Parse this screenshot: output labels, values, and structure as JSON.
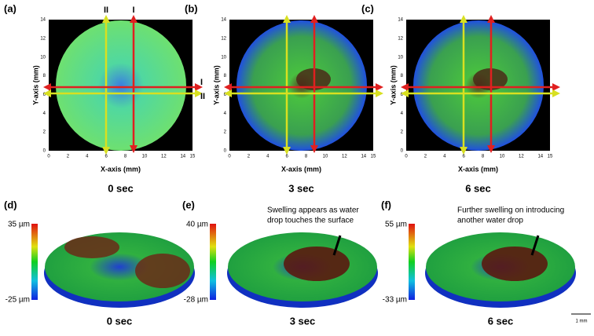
{
  "top_panels": [
    {
      "label": "(a)",
      "y_axis_title": "Y-axis (mm)",
      "x_axis_title": "X-axis (mm)",
      "yticks": [
        "0",
        "2",
        "4",
        "6",
        "8",
        "10",
        "12",
        "14"
      ],
      "xticks": [
        "0",
        "2",
        "4",
        "6",
        "8",
        "10",
        "12",
        "14",
        "15"
      ],
      "line_labels": {
        "yellow_vertical": "II",
        "red_vertical": "I",
        "red_horizontal": "I",
        "yellow_horizontal": "II"
      },
      "caption": "0 sec"
    },
    {
      "label": "(b)",
      "y_axis_title": "Y-axis (mm)",
      "x_axis_title": "X-axis (mm)",
      "yticks": [
        "0",
        "2",
        "4",
        "6",
        "8",
        "10",
        "12",
        "14"
      ],
      "xticks": [
        "0",
        "2",
        "4",
        "6",
        "8",
        "10",
        "12",
        "14",
        "15"
      ],
      "caption": "3 sec"
    },
    {
      "label": "(c)",
      "y_axis_title": "Y-axis (mm)",
      "x_axis_title": "X-axis (mm)",
      "yticks": [
        "0",
        "2",
        "4",
        "6",
        "8",
        "10",
        "12",
        "14"
      ],
      "xticks": [
        "0",
        "2",
        "4",
        "6",
        "8",
        "10",
        "12",
        "14",
        "15"
      ],
      "caption": "6 sec"
    }
  ],
  "bottom_panels": [
    {
      "label": "(d)",
      "colorbar_max": "35 µm",
      "colorbar_min": "-25 µm",
      "caption": "0 sec"
    },
    {
      "label": "(e)",
      "colorbar_max": "40 µm",
      "colorbar_min": "-28 µm",
      "annotation": [
        "Swelling appears as water",
        "drop touches the surface"
      ],
      "caption": "3 sec"
    },
    {
      "label": "(f)",
      "colorbar_max": "55 µm",
      "colorbar_min": "-33 µm",
      "annotation": [
        "Further swelling on introducing",
        "another water drop"
      ],
      "caption": "6 sec"
    }
  ],
  "scale_bar": "1 mm"
}
